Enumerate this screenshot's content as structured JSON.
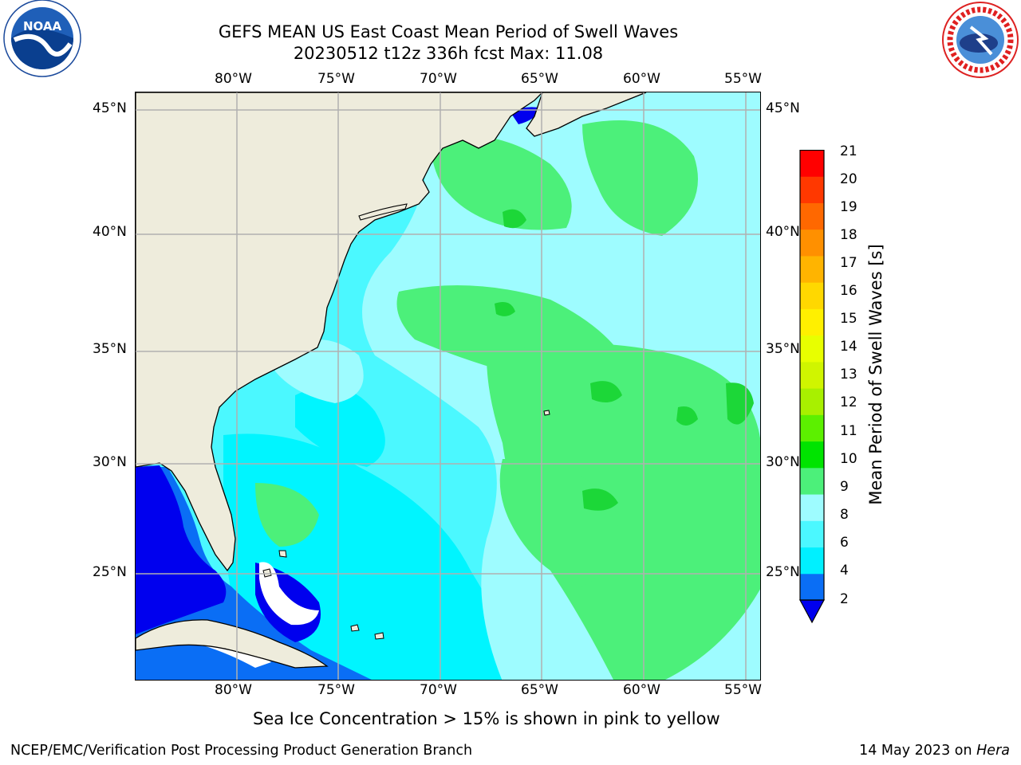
{
  "header": {
    "title_line1": "GEFS MEAN US East Coast Mean Period of Swell Waves",
    "title_line2": "20230512 t12z 336h fcst   Max: 11.08"
  },
  "logos": {
    "noaa_text": "NOAA",
    "nws_text": "NATIONAL WEATHER SERVICE"
  },
  "map": {
    "lon_labels": [
      "80°W",
      "75°W",
      "70°W",
      "65°W",
      "60°W",
      "55°W"
    ],
    "lat_labels": [
      "45°N",
      "40°N",
      "35°N",
      "30°N",
      "25°N"
    ],
    "colors": {
      "land": "#eeecdc",
      "coastline": "#000000",
      "gridline": "#b0b0b0",
      "blue_2_4": "#0a6ef5",
      "deep_blue_below_2": "#0000ee",
      "cyan_4_6": "#00f5ff",
      "cyan_6_8": "#4bf8ff",
      "light_cyan_8_9": "#9efcff",
      "green_9_10": "#4cf07a",
      "green_10_11": "#1cd738",
      "ice_free_white": "#ffffff"
    }
  },
  "colorbar": {
    "label": "Mean Period of Swell Waves [s]",
    "ticks": [
      "21",
      "20",
      "19",
      "18",
      "17",
      "16",
      "15",
      "14",
      "13",
      "12",
      "11",
      "10",
      "9",
      "8",
      "6",
      "4",
      "2"
    ],
    "colors": [
      "#0a6ef5",
      "#00f0ff",
      "#4bf8ff",
      "#9efcff",
      "#4cf07a",
      "#00e400",
      "#5cf000",
      "#a8f000",
      "#d0f500",
      "#e8ff00",
      "#fff000",
      "#ffd800",
      "#ffb400",
      "#ff9000",
      "#ff6800",
      "#ff3800",
      "#ff0000"
    ],
    "under_color": "#0000ee"
  },
  "notes": {
    "ice_note": "Sea Ice Concentration > 15% is shown in pink to yellow",
    "footer_left": "NCEP/EMC/Verification Post Processing Product Generation Branch",
    "footer_date": "14 May 2023 on ",
    "footer_host": "Hera"
  }
}
